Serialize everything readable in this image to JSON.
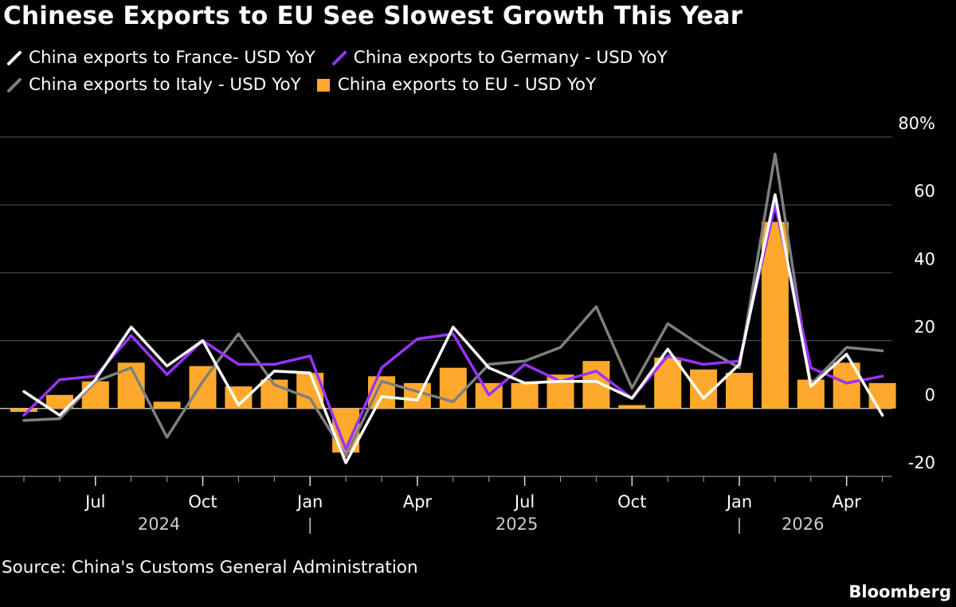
{
  "title": "Chinese Exports to EU See Slowest Growth This Year",
  "source": "Source: China's Customs General Administration",
  "brand": "Bloomberg",
  "colors": {
    "background": "#000000",
    "france": "#ffffff",
    "germany": "#9933ff",
    "italy": "#7f7f7f",
    "eu": "#ffa92c",
    "grid": "#555555",
    "axis": "#aaaaaa"
  },
  "legend": [
    {
      "label": "China exports to France- USD YoY",
      "color": "#ffffff",
      "kind": "line"
    },
    {
      "label": "China exports to Germany - USD YoY",
      "color": "#9933ff",
      "kind": "line"
    },
    {
      "label": "China exports to Italy - USD YoY",
      "color": "#7f7f7f",
      "kind": "line"
    },
    {
      "label": "China exports to EU - USD YoY",
      "color": "#ffa92c",
      "kind": "box"
    }
  ],
  "chart_data": {
    "type": "bar+line",
    "x": [
      "2024-05",
      "2024-06",
      "2024-07",
      "2024-08",
      "2024-09",
      "2024-10",
      "2024-11",
      "2024-12",
      "2025-01",
      "2025-02",
      "2025-03",
      "2025-04",
      "2025-05",
      "2025-06",
      "2025-07",
      "2025-08",
      "2025-09",
      "2025-10",
      "2025-11",
      "2025-12",
      "2026-01",
      "2026-02",
      "2026-03",
      "2026-04",
      "2026-05"
    ],
    "ylim": [
      -20,
      80
    ],
    "yticks": [
      -20,
      0,
      20,
      40,
      60,
      80
    ],
    "ytick_labels": [
      "-20",
      "0",
      "20",
      "40",
      "60",
      "80%"
    ],
    "x_ticks": [
      {
        "label": "Jul",
        "x": "2024-07"
      },
      {
        "label": "Oct",
        "x": "2024-10"
      },
      {
        "label": "Jan",
        "x": "2025-01"
      },
      {
        "label": "Apr",
        "x": "2025-04"
      },
      {
        "label": "Jul",
        "x": "2025-07"
      },
      {
        "label": "Oct",
        "x": "2025-10"
      },
      {
        "label": "Jan",
        "x": "2026-01"
      },
      {
        "label": "Apr",
        "x": "2026-04"
      }
    ],
    "year_labels": [
      {
        "label": "2024",
        "x": "2024-09"
      },
      {
        "label": "2025",
        "x": "2025-07"
      },
      {
        "label": "2026",
        "x": "2026-03"
      }
    ],
    "year_separators": [
      "2025-01",
      "2026-01"
    ],
    "grid": true,
    "series": [
      {
        "name": "China exports to EU - USD YoY",
        "kind": "bar",
        "color": "#ffa92c",
        "values": [
          -1,
          4,
          8,
          13.5,
          2,
          12.5,
          6.5,
          8.5,
          10.5,
          -13,
          9.5,
          7.5,
          12,
          7.5,
          7.5,
          10,
          14,
          1,
          15,
          11.5,
          10.5,
          55,
          8.5,
          13.5,
          7.5
        ]
      },
      {
        "name": "China exports to Italy - USD YoY",
        "kind": "line",
        "color": "#7f7f7f",
        "values": [
          -3.5,
          -3,
          8,
          12,
          -8.5,
          8,
          22,
          7,
          3,
          -14,
          8,
          5,
          2,
          13,
          14,
          18,
          30,
          6,
          25,
          18,
          12,
          75,
          7,
          18,
          17
        ]
      },
      {
        "name": "China exports to Germany - USD YoY",
        "kind": "line",
        "color": "#9933ff",
        "values": [
          -2,
          8.5,
          9.5,
          21.5,
          10,
          20,
          13,
          13,
          15.5,
          -12,
          12,
          20.5,
          22,
          4,
          13,
          8,
          11,
          3,
          15.5,
          13,
          14,
          60,
          12,
          7.5,
          9.5
        ]
      },
      {
        "name": "China exports to France- USD YoY",
        "kind": "line",
        "color": "#ffffff",
        "values": [
          5,
          -2,
          8.5,
          24,
          12.5,
          20,
          1,
          11,
          10.5,
          -16,
          3.5,
          2.5,
          24,
          12,
          7.5,
          8,
          8,
          3,
          17.5,
          3,
          13,
          63,
          6.5,
          16,
          -2
        ]
      }
    ]
  }
}
